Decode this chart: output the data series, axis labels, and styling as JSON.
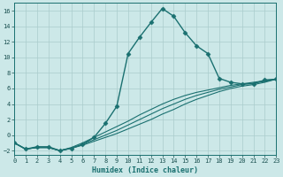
{
  "xlabel": "Humidex (Indice chaleur)",
  "background_color": "#cce8e8",
  "grid_color": "#aacccc",
  "line_color": "#1a7070",
  "xlim": [
    0,
    23
  ],
  "ylim": [
    -2.5,
    17
  ],
  "xticks": [
    0,
    1,
    2,
    3,
    4,
    5,
    6,
    7,
    8,
    9,
    10,
    11,
    12,
    13,
    14,
    15,
    16,
    17,
    18,
    19,
    20,
    21,
    22,
    23
  ],
  "yticks": [
    -2,
    0,
    2,
    4,
    6,
    8,
    10,
    12,
    14,
    16
  ],
  "series": [
    {
      "x": [
        0,
        1,
        2,
        3,
        4,
        5,
        6,
        7,
        8,
        9,
        10,
        11,
        12,
        13,
        14,
        15,
        16,
        17,
        18,
        19,
        20,
        21,
        22,
        23
      ],
      "y": [
        -1.0,
        -1.8,
        -1.5,
        -1.5,
        -2.0,
        -1.7,
        -1.2,
        -0.3,
        1.5,
        3.7,
        10.5,
        12.6,
        14.5,
        16.3,
        15.3,
        13.2,
        11.5,
        10.5,
        7.3,
        6.8,
        6.6,
        6.6,
        7.1,
        7.2
      ],
      "marker": "D",
      "markersize": 2.5,
      "linewidth": 1.0,
      "with_markers": true
    },
    {
      "x": [
        0,
        1,
        2,
        3,
        4,
        5,
        6,
        7,
        8,
        9,
        10,
        11,
        12,
        13,
        14,
        15,
        16,
        17,
        18,
        19,
        20,
        21,
        22,
        23
      ],
      "y": [
        -1.0,
        -1.8,
        -1.6,
        -1.6,
        -2.0,
        -1.7,
        -1.3,
        -0.8,
        -0.3,
        0.2,
        0.8,
        1.4,
        2.0,
        2.7,
        3.3,
        4.0,
        4.6,
        5.1,
        5.6,
        6.0,
        6.3,
        6.5,
        6.8,
        7.2
      ],
      "marker": null,
      "linewidth": 0.8,
      "with_markers": false
    },
    {
      "x": [
        0,
        1,
        2,
        3,
        4,
        5,
        6,
        7,
        8,
        9,
        10,
        11,
        12,
        13,
        14,
        15,
        16,
        17,
        18,
        19,
        20,
        21,
        22,
        23
      ],
      "y": [
        -1.0,
        -1.8,
        -1.6,
        -1.6,
        -2.0,
        -1.7,
        -1.2,
        -0.6,
        0.0,
        0.6,
        1.3,
        2.0,
        2.7,
        3.4,
        4.0,
        4.6,
        5.1,
        5.5,
        5.9,
        6.2,
        6.5,
        6.7,
        6.9,
        7.2
      ],
      "marker": null,
      "linewidth": 0.8,
      "with_markers": false
    },
    {
      "x": [
        0,
        1,
        2,
        3,
        4,
        5,
        6,
        7,
        8,
        9,
        10,
        11,
        12,
        13,
        14,
        15,
        16,
        17,
        18,
        19,
        20,
        21,
        22,
        23
      ],
      "y": [
        -1.0,
        -1.8,
        -1.6,
        -1.6,
        -2.0,
        -1.6,
        -1.0,
        -0.3,
        0.4,
        1.1,
        1.8,
        2.6,
        3.3,
        4.0,
        4.6,
        5.1,
        5.5,
        5.8,
        6.1,
        6.4,
        6.6,
        6.8,
        7.0,
        7.2
      ],
      "marker": null,
      "linewidth": 0.8,
      "with_markers": false
    }
  ]
}
